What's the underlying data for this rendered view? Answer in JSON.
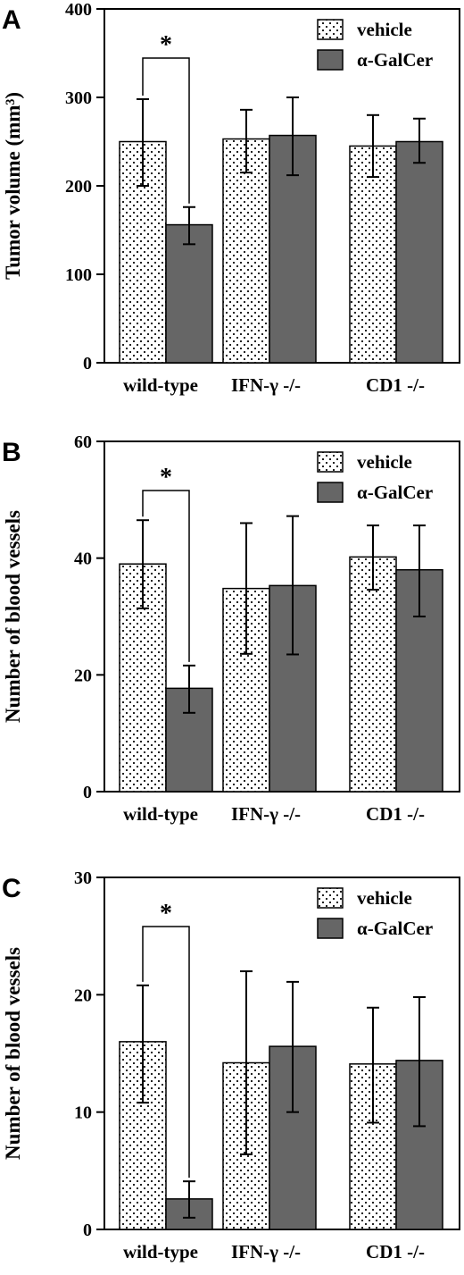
{
  "colors": {
    "vehicle_fill": "#ffffff",
    "vehicle_dots": "#222222",
    "galcer_fill": "#666666",
    "axis": "#000000"
  },
  "chart_data": [
    {
      "type": "bar",
      "panel": "A",
      "ylabel": "Tumor volume (mm³)",
      "ylim": [
        0,
        400
      ],
      "yticks": [
        0,
        100,
        200,
        300,
        400
      ],
      "categories": [
        "wild-type",
        "IFN-γ -/-",
        "CD1 -/-"
      ],
      "series": [
        {
          "name": "vehicle",
          "pattern": "dotted",
          "values": [
            250,
            253,
            245
          ],
          "err_up": [
            48,
            33,
            35
          ],
          "err_down": [
            50,
            38,
            35
          ]
        },
        {
          "name": "α-GalCer",
          "pattern": "solid",
          "values": [
            156,
            257,
            250
          ],
          "err_up": [
            20,
            43,
            26
          ],
          "err_down": [
            22,
            45,
            24
          ]
        }
      ],
      "significance": {
        "label": "*",
        "between_category": 0
      },
      "legend": "top-right"
    },
    {
      "type": "bar",
      "panel": "B",
      "ylabel": "Number of blood vessels",
      "ylim": [
        0,
        60
      ],
      "yticks": [
        0,
        20,
        40,
        60
      ],
      "categories": [
        "wild-type",
        "IFN-γ -/-",
        "CD1 -/-"
      ],
      "series": [
        {
          "name": "vehicle",
          "pattern": "dotted",
          "values": [
            39,
            34.8,
            40.2
          ],
          "err_up": [
            7.5,
            11.2,
            5.4
          ],
          "err_down": [
            7.6,
            11.2,
            5.6
          ]
        },
        {
          "name": "α-GalCer",
          "pattern": "solid",
          "values": [
            17.7,
            35.3,
            38
          ],
          "err_up": [
            3.9,
            11.9,
            7.6
          ],
          "err_down": [
            4.2,
            11.8,
            8
          ]
        }
      ],
      "significance": {
        "label": "*",
        "between_category": 0
      },
      "legend": "top-right"
    },
    {
      "type": "bar",
      "panel": "C",
      "ylabel": "Number of blood vessels",
      "ylim": [
        0,
        30
      ],
      "yticks": [
        0,
        10,
        20,
        30
      ],
      "categories": [
        "wild-type",
        "IFN-γ -/-",
        "CD1 -/-"
      ],
      "series": [
        {
          "name": "vehicle",
          "pattern": "dotted",
          "values": [
            16,
            14.2,
            14.1
          ],
          "err_up": [
            4.8,
            7.8,
            4.8
          ],
          "err_down": [
            5.2,
            7.8,
            5
          ]
        },
        {
          "name": "α-GalCer",
          "pattern": "solid",
          "values": [
            2.6,
            15.6,
            14.4
          ],
          "err_up": [
            1.5,
            5.5,
            5.4
          ],
          "err_down": [
            1.6,
            5.6,
            5.6
          ]
        }
      ],
      "significance": {
        "label": "*",
        "between_category": 0
      },
      "legend": "top-right"
    }
  ]
}
